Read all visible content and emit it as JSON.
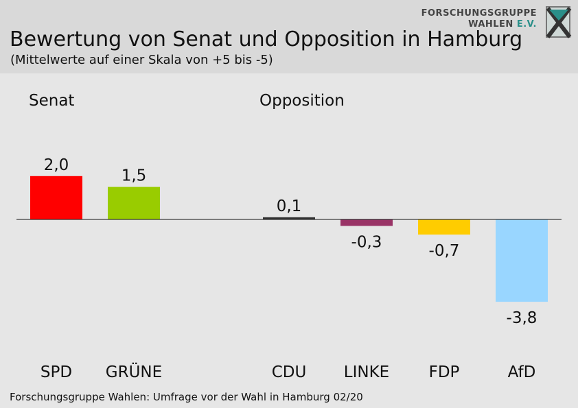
{
  "header": {
    "title": "Bewertung von Senat und Opposition in Hamburg",
    "subtitle": "(Mittelwerte auf einer Skala von +5 bis -5)"
  },
  "logo": {
    "line1": "FORSCHUNGSGRUPPE",
    "line2": "WAHLEN",
    "line2_suffix": "E.V.",
    "icon": "fgw-logo-icon"
  },
  "footer": {
    "source": "Forschungsgruppe Wahlen: Umfrage vor der Wahl in Hamburg 02/20"
  },
  "chart_data": {
    "type": "bar",
    "groups": [
      {
        "label": "Senat",
        "categories": [
          "SPD",
          "GRÜNE"
        ]
      },
      {
        "label": "Opposition",
        "categories": [
          "CDU",
          "LINKE",
          "FDP",
          "AfD"
        ]
      }
    ],
    "categories": [
      "SPD",
      "GRÜNE",
      "CDU",
      "LINKE",
      "FDP",
      "AfD"
    ],
    "values": [
      2.0,
      1.5,
      0.1,
      -0.3,
      -0.7,
      -3.8
    ],
    "value_labels": [
      "2,0",
      "1,5",
      "0,1",
      "-0,3",
      "-0,7",
      "-3,8"
    ],
    "colors": [
      "#ff0000",
      "#99cc00",
      "#333333",
      "#993366",
      "#ffcc00",
      "#99d6ff"
    ],
    "scale": [
      5,
      -5
    ],
    "grid": false,
    "legend": "none"
  }
}
